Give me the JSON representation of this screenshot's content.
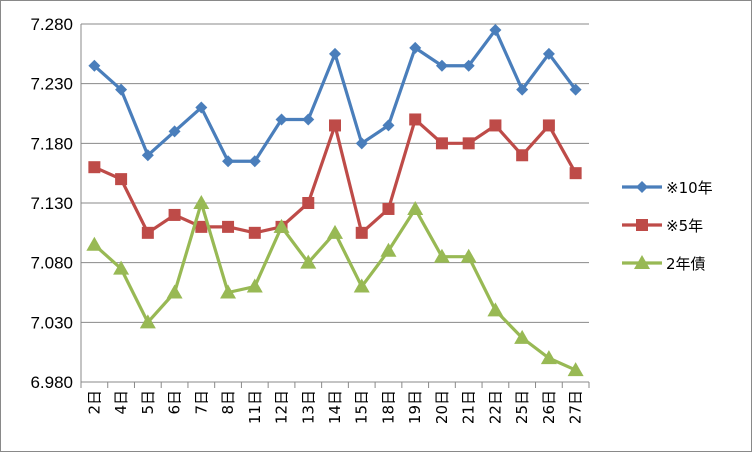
{
  "chart_data": {
    "type": "line",
    "title": "",
    "xlabel": "",
    "ylabel": "",
    "categories": [
      "2日",
      "4日",
      "5日",
      "6日",
      "7日",
      "8日",
      "11日",
      "12日",
      "13日",
      "14日",
      "15日",
      "18日",
      "19日",
      "20日",
      "21日",
      "22日",
      "25日",
      "26日",
      "27日"
    ],
    "ylim": [
      6.98,
      7.28
    ],
    "yticks": [
      "7.280",
      "7.230",
      "7.180",
      "7.130",
      "7.080",
      "7.030",
      "6.980"
    ],
    "ytick_values": [
      7.28,
      7.23,
      7.18,
      7.13,
      7.08,
      7.03,
      6.98
    ],
    "grid": "horizontal",
    "legend_position": "right",
    "series": [
      {
        "name": "※10年",
        "color": "#4a7ebb",
        "marker": "diamond",
        "values": [
          7.245,
          7.225,
          7.17,
          7.19,
          7.21,
          7.165,
          7.165,
          7.2,
          7.2,
          7.255,
          7.18,
          7.195,
          7.26,
          7.245,
          7.245,
          7.275,
          7.225,
          7.255,
          7.225
        ]
      },
      {
        "name": "※5年",
        "color": "#be4b48",
        "marker": "square",
        "values": [
          7.16,
          7.15,
          7.105,
          7.12,
          7.11,
          7.11,
          7.105,
          7.11,
          7.13,
          7.195,
          7.105,
          7.125,
          7.2,
          7.18,
          7.18,
          7.195,
          7.17,
          7.195,
          7.155
        ]
      },
      {
        "name": "2年債",
        "color": "#98b954",
        "marker": "triangle",
        "values": [
          7.095,
          7.075,
          7.03,
          7.055,
          7.13,
          7.055,
          7.06,
          7.11,
          7.08,
          7.105,
          7.06,
          7.09,
          7.125,
          7.085,
          7.085,
          7.04,
          7.017,
          7.0,
          6.99
        ]
      }
    ]
  }
}
